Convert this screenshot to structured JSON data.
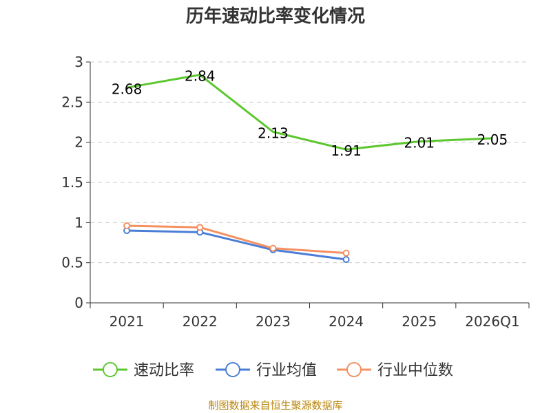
{
  "chart_data": {
    "type": "line",
    "title": "历年速动比率变化情况",
    "categories": [
      "2021",
      "2022",
      "2023",
      "2024",
      "2025",
      "2026Q1"
    ],
    "ylim": [
      0,
      3
    ],
    "yticks": [
      0,
      0.5,
      1,
      1.5,
      2,
      2.5,
      3
    ],
    "ytick_labels": [
      "0",
      "0.5",
      "1",
      "1.5",
      "2",
      "2.5",
      "3"
    ],
    "grid": true,
    "legend_position": "bottom",
    "series": [
      {
        "name": "速动比率",
        "color": "#5cc72e",
        "values": [
          2.68,
          2.84,
          2.13,
          1.91,
          2.01,
          2.05
        ],
        "labels": [
          "2.68",
          "2.84",
          "2.13",
          "1.91",
          "2.01",
          "2.05"
        ],
        "markers": false
      },
      {
        "name": "行业均值",
        "color": "#4a7dd6",
        "values": [
          0.9,
          0.88,
          0.66,
          0.54,
          null,
          null
        ],
        "markers": true
      },
      {
        "name": "行业中位数",
        "color": "#f59060",
        "values": [
          0.96,
          0.94,
          0.68,
          0.62,
          null,
          null
        ],
        "markers": true
      }
    ],
    "source": "制图数据来自恒生聚源数据库"
  }
}
